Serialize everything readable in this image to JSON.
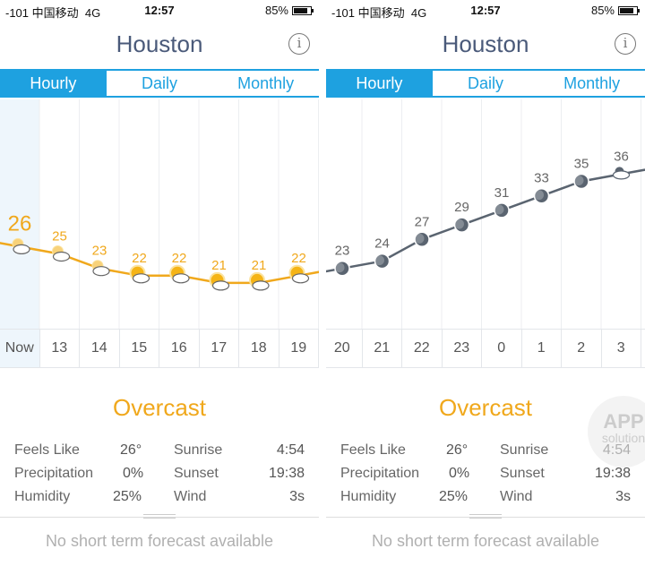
{
  "status": {
    "carrier": "-101 中国移动",
    "network": "4G",
    "time": "12:57",
    "battery": "85%",
    "battery_level": 0.85
  },
  "title": "Houston",
  "info_icon": "i",
  "tabs": [
    {
      "label": "Hourly"
    },
    {
      "label": "Daily"
    },
    {
      "label": "Monthly"
    }
  ],
  "colors": {
    "accent": "#1ea1e0",
    "day_line": "#f0a81c",
    "night_line": "#5a6470"
  },
  "panels": [
    {
      "hours": [
        "Now",
        "13",
        "14",
        "15",
        "16",
        "17",
        "18",
        "19"
      ],
      "temps": [
        26,
        25,
        23,
        22,
        22,
        21,
        21,
        22
      ],
      "icons": [
        "partly-cloudy-icon",
        "partly-cloudy-icon",
        "partly-cloudy-icon",
        "sun-cloud-icon",
        "sun-cloud-icon",
        "sun-cloud-icon",
        "sun-cloud-icon",
        "sun-cloud-icon"
      ]
    },
    {
      "hours": [
        "20",
        "21",
        "22",
        "23",
        "0",
        "1",
        "2",
        "3"
      ],
      "temps": [
        23,
        24,
        27,
        29,
        31,
        33,
        35,
        36
      ],
      "icons": [
        "moon-icon",
        "moon-icon",
        "moon-icon",
        "moon-icon",
        "moon-icon",
        "moon-icon",
        "moon-icon",
        "moon-cloud-icon"
      ]
    }
  ],
  "condition": "Overcast",
  "details": {
    "feels_like_label": "Feels Like",
    "feels_like": "26°",
    "precip_label": "Precipitation",
    "precip": "0%",
    "humidity_label": "Humidity",
    "humidity": "25%",
    "sunrise_label": "Sunrise",
    "sunrise": "4:54",
    "sunset_label": "Sunset",
    "sunset": "19:38",
    "wind_label": "Wind",
    "wind": "3s"
  },
  "footer": "No short term forecast available",
  "watermark": {
    "line1": "APP",
    "line2": "solution"
  }
}
